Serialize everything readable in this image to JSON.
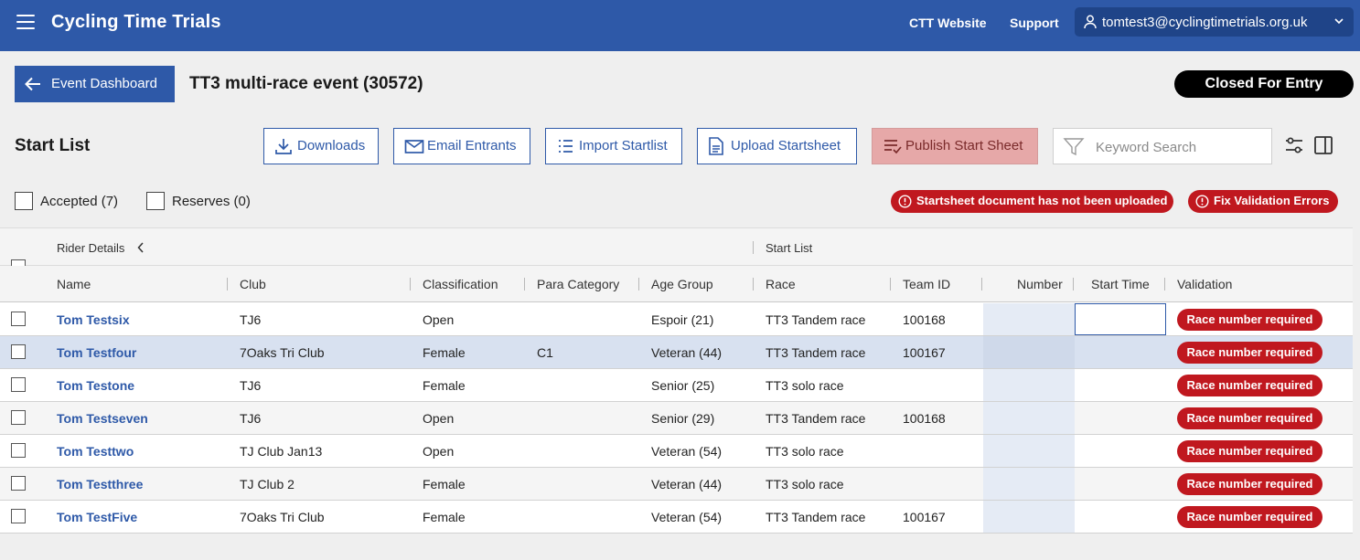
{
  "header": {
    "brand": "Cycling Time Trials",
    "links": {
      "website": "CTT Website",
      "support": "Support"
    },
    "user_email": "tomtest3@cyclingtimetrials.org.uk"
  },
  "event": {
    "back_label": "Event Dashboard",
    "title": "TT3 multi-race event (30572)",
    "status": "Closed For Entry"
  },
  "toolbar": {
    "section_title": "Start List",
    "downloads": "Downloads",
    "email": "Email Entrants",
    "import": "Import Startlist",
    "upload": "Upload Startsheet",
    "publish": "Publish Start Sheet",
    "search_placeholder": "Keyword Search"
  },
  "filters": {
    "accepted": "Accepted (7)",
    "reserves": "Reserves (0)"
  },
  "alerts": {
    "startsheet": "Startsheet document has not been uploaded",
    "fix": "Fix Validation Errors"
  },
  "table": {
    "groups": {
      "rider": "Rider Details",
      "start": "Start List"
    },
    "headers": {
      "name": "Name",
      "club": "Club",
      "classification": "Classification",
      "para": "Para Category",
      "age": "Age Group",
      "race": "Race",
      "team": "Team ID",
      "number": "Number",
      "start_time": "Start Time",
      "validation": "Validation"
    },
    "rows": [
      {
        "name": "Tom Testsix",
        "club": "TJ6",
        "classification": "Open",
        "para": "",
        "age": "Espoir (21)",
        "race": "TT3 Tandem race",
        "team": "100168",
        "number": "",
        "start_time": "",
        "validation": "Race number required"
      },
      {
        "name": "Tom Testfour",
        "club": "7Oaks Tri Club",
        "classification": "Female",
        "para": "C1",
        "age": "Veteran (44)",
        "race": "TT3 Tandem race",
        "team": "100167",
        "number": "",
        "start_time": "",
        "validation": "Race number required"
      },
      {
        "name": "Tom Testone",
        "club": "TJ6",
        "classification": "Female",
        "para": "",
        "age": "Senior (25)",
        "race": "TT3 solo race",
        "team": "",
        "number": "",
        "start_time": "",
        "validation": "Race number required"
      },
      {
        "name": "Tom Testseven",
        "club": "TJ6",
        "classification": "Open",
        "para": "",
        "age": "Senior (29)",
        "race": "TT3 Tandem race",
        "team": "100168",
        "number": "",
        "start_time": "",
        "validation": "Race number required"
      },
      {
        "name": "Tom Testtwo",
        "club": "TJ Club Jan13",
        "classification": "Open",
        "para": "",
        "age": "Veteran (54)",
        "race": "TT3 solo race",
        "team": "",
        "number": "",
        "start_time": "",
        "validation": "Race number required"
      },
      {
        "name": "Tom Testthree",
        "club": "TJ Club 2",
        "classification": "Female",
        "para": "",
        "age": "Veteran (44)",
        "race": "TT3 solo race",
        "team": "",
        "number": "",
        "start_time": "",
        "validation": "Race number required"
      },
      {
        "name": "Tom TestFive",
        "club": "7Oaks Tri Club",
        "classification": "Female",
        "para": "",
        "age": "Veteran (54)",
        "race": "TT3 Tandem race",
        "team": "100167",
        "number": "",
        "start_time": "",
        "validation": "Race number required"
      }
    ]
  },
  "colors": {
    "primary": "#2e59a8",
    "error": "#c0181f",
    "publish_disabled": "#e6a8a8",
    "selected_row": "#d8e1f0"
  }
}
